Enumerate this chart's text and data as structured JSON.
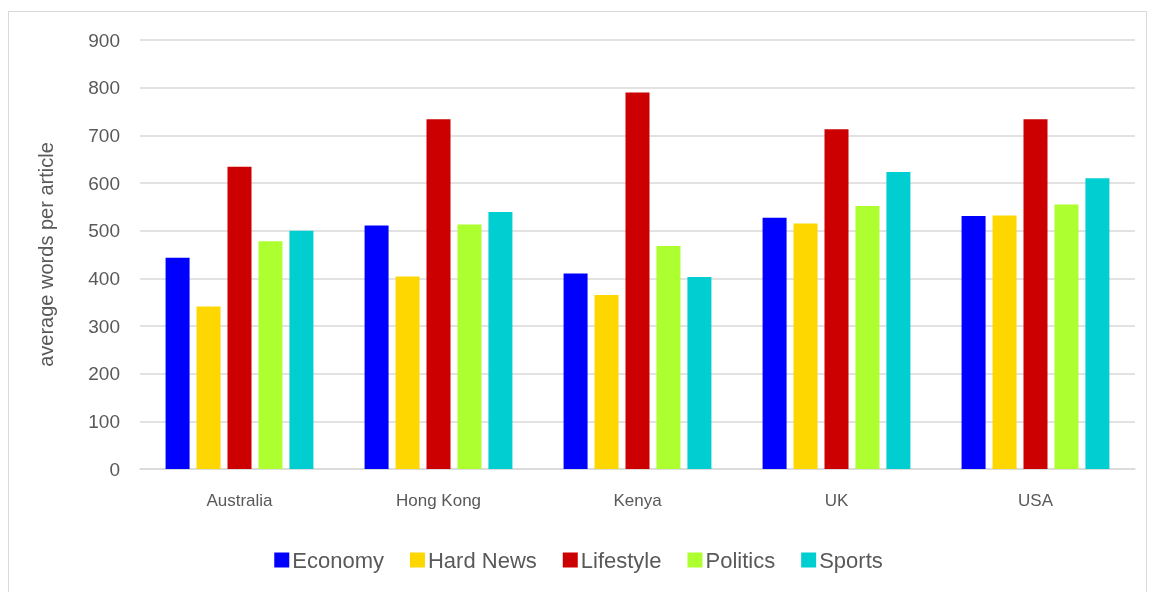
{
  "chart_data": {
    "type": "bar",
    "ylabel": "average words per article",
    "categories": [
      "Australia",
      "Hong Kong",
      "Kenya",
      "UK",
      "USA"
    ],
    "series": [
      {
        "name": "Economy",
        "color": "#0000ff",
        "values": [
          443,
          511,
          410,
          527,
          531
        ]
      },
      {
        "name": "Hard News",
        "color": "#ffd700",
        "values": [
          341,
          404,
          365,
          515,
          532
        ]
      },
      {
        "name": "Lifestyle",
        "color": "#cc0000",
        "values": [
          634,
          734,
          790,
          713,
          734
        ]
      },
      {
        "name": "Politics",
        "color": "#adff2f",
        "values": [
          478,
          513,
          468,
          552,
          555
        ]
      },
      {
        "name": "Sports",
        "color": "#00ced1",
        "values": [
          500,
          539,
          403,
          623,
          610
        ]
      }
    ],
    "ylim": [
      0,
      900
    ],
    "yticks": [
      0,
      100,
      200,
      300,
      400,
      500,
      600,
      700,
      800,
      900
    ],
    "grid": "y",
    "legend": "bottom"
  }
}
